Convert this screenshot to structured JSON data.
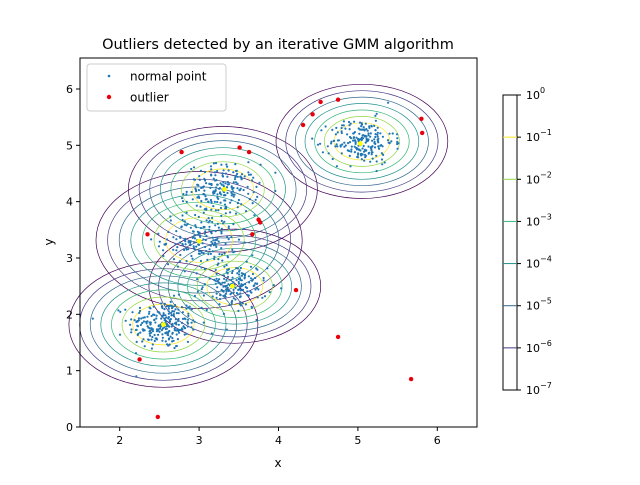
{
  "chart_data": {
    "type": "scatter",
    "title": "Outliers detected by an iterative GMM algorithm",
    "xlabel": "x",
    "ylabel": "y",
    "xlim": [
      1.5,
      6.5
    ],
    "ylim": [
      0,
      6.55
    ],
    "xticks": [
      "2",
      "3",
      "4",
      "5",
      "6"
    ],
    "yticks": [
      "0",
      "1",
      "2",
      "3",
      "4",
      "5",
      "6"
    ],
    "grid": false,
    "legend_position": "top-left",
    "series": [
      {
        "name": "normal point",
        "color": "#1f77b4",
        "marker": "small-dot",
        "cluster_centers": [
          [
            2.55,
            1.82
          ],
          [
            3.0,
            3.32
          ],
          [
            3.3,
            4.22
          ],
          [
            3.45,
            2.5
          ],
          [
            5.05,
            5.07
          ]
        ],
        "cluster_spread": [
          0.22,
          0.24,
          0.22,
          0.2,
          0.2
        ],
        "cluster_sizes": [
          250,
          170,
          190,
          170,
          210
        ]
      },
      {
        "name": "outlier",
        "color": "#e8000b",
        "marker": "dot",
        "points": [
          [
            2.48,
            0.18
          ],
          [
            2.25,
            1.2
          ],
          [
            2.35,
            3.42
          ],
          [
            2.78,
            4.88
          ],
          [
            3.51,
            4.96
          ],
          [
            3.63,
            4.88
          ],
          [
            3.67,
            3.42
          ],
          [
            3.75,
            3.68
          ],
          [
            3.77,
            3.63
          ],
          [
            4.22,
            2.43
          ],
          [
            4.31,
            5.36
          ],
          [
            4.43,
            5.55
          ],
          [
            4.53,
            5.77
          ],
          [
            4.75,
            5.81
          ],
          [
            4.75,
            1.6
          ],
          [
            5.67,
            0.85
          ],
          [
            5.8,
            5.47
          ],
          [
            5.81,
            5.22
          ]
        ]
      }
    ],
    "means": {
      "color": "#ffff00",
      "points": [
        [
          2.55,
          1.82
        ],
        [
          3.0,
          3.3
        ],
        [
          3.32,
          4.22
        ],
        [
          3.42,
          2.5
        ],
        [
          5.03,
          5.03
        ]
      ]
    },
    "contour_levels": [
      1e-07,
      1e-06,
      1e-05,
      0.0001,
      0.001,
      0.01,
      0.1
    ],
    "colorbar": {
      "scale": "log",
      "range": [
        1e-07,
        1
      ],
      "ticks": [
        {
          "base": "10",
          "exp": "0"
        },
        {
          "base": "10",
          "exp": "−1"
        },
        {
          "base": "10",
          "exp": "−2"
        },
        {
          "base": "10",
          "exp": "−3"
        },
        {
          "base": "10",
          "exp": "−4"
        },
        {
          "base": "10",
          "exp": "−5"
        },
        {
          "base": "10",
          "exp": "−6"
        },
        {
          "base": "10",
          "exp": "−7"
        }
      ],
      "colormap": "viridis"
    }
  }
}
